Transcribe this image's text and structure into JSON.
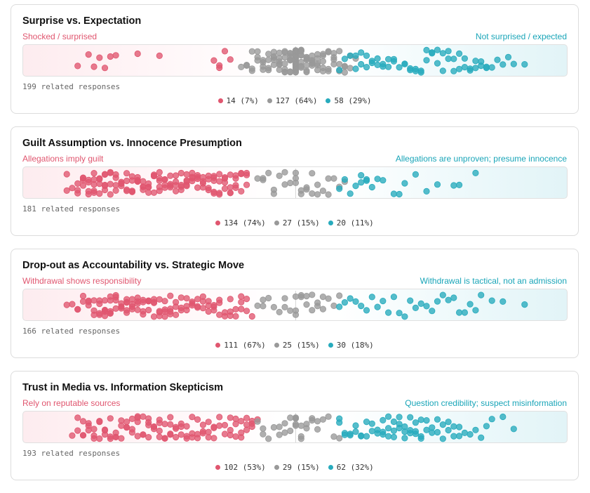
{
  "colors": {
    "shocked": "#e0566f",
    "neutral": "#999999",
    "expected": "#27abbd"
  },
  "cards": [
    {
      "title": "Surprise vs. Expectation",
      "left_label": "Shocked / surprised",
      "right_label": "Not surprised / expected",
      "count_text": "199 related responses",
      "legend": [
        {
          "series": "left",
          "text": "14 (7%)"
        },
        {
          "series": "neutral",
          "text": "127 (64%)"
        },
        {
          "series": "right",
          "text": "58 (29%)"
        }
      ]
    },
    {
      "title": "Guilt Assumption vs. Innocence Presumption",
      "left_label": "Allegations imply guilt",
      "right_label": "Allegations are unproven; presume innocence",
      "count_text": "181 related responses",
      "legend": [
        {
          "series": "left",
          "text": "134 (74%)"
        },
        {
          "series": "neutral",
          "text": "27 (15%)"
        },
        {
          "series": "right",
          "text": "20 (11%)"
        }
      ]
    },
    {
      "title": "Drop-out as Accountability vs. Strategic Move",
      "left_label": "Withdrawal shows responsibility",
      "right_label": "Withdrawal is tactical, not an admission",
      "count_text": "166 related responses",
      "legend": [
        {
          "series": "left",
          "text": "111 (67%)"
        },
        {
          "series": "neutral",
          "text": "25 (15%)"
        },
        {
          "series": "right",
          "text": "30 (18%)"
        }
      ]
    },
    {
      "title": "Trust in Media vs. Information Skepticism",
      "left_label": "Rely on reputable sources",
      "right_label": "Question credibility; suspect misinformation",
      "count_text": "193 related responses",
      "legend": [
        {
          "series": "left",
          "text": "102 (53%)"
        },
        {
          "series": "neutral",
          "text": "29 (15%)"
        },
        {
          "series": "right",
          "text": "62 (32%)"
        }
      ]
    }
  ],
  "chart_data": [
    {
      "type": "scatter",
      "title": "Surprise vs. Expectation",
      "scale": [
        "Shocked / surprised",
        "Not surprised / expected"
      ],
      "series": [
        {
          "name": "Shocked / surprised",
          "count": 14,
          "percent": 7,
          "x": [
            0.1,
            0.12,
            0.13,
            0.14,
            0.15,
            0.16,
            0.17,
            0.21,
            0.25,
            0.35,
            0.36,
            0.36,
            0.37,
            0.38
          ]
        },
        {
          "name": "neutral",
          "count": 127,
          "percent": 64,
          "x": [
            0.4,
            0.41,
            0.41,
            0.42,
            0.42,
            0.42,
            0.43,
            0.43,
            0.43,
            0.44,
            0.44,
            0.44,
            0.44,
            0.45,
            0.45,
            0.45,
            0.45,
            0.46,
            0.46,
            0.46,
            0.46,
            0.46,
            0.47,
            0.47,
            0.47,
            0.47,
            0.47,
            0.47,
            0.48,
            0.48,
            0.48,
            0.48,
            0.48,
            0.48,
            0.48,
            0.49,
            0.49,
            0.49,
            0.49,
            0.49,
            0.49,
            0.49,
            0.49,
            0.5,
            0.5,
            0.5,
            0.5,
            0.5,
            0.5,
            0.5,
            0.5,
            0.5,
            0.5,
            0.5,
            0.5,
            0.5,
            0.5,
            0.5,
            0.5,
            0.5,
            0.5,
            0.5,
            0.5,
            0.5,
            0.5,
            0.5,
            0.5,
            0.5,
            0.5,
            0.5,
            0.5,
            0.5,
            0.5,
            0.5,
            0.5,
            0.5,
            0.5,
            0.5,
            0.5,
            0.51,
            0.51,
            0.51,
            0.51,
            0.51,
            0.51,
            0.51,
            0.51,
            0.51,
            0.52,
            0.52,
            0.52,
            0.52,
            0.52,
            0.52,
            0.52,
            0.53,
            0.53,
            0.53,
            0.53,
            0.53,
            0.53,
            0.54,
            0.54,
            0.54,
            0.54,
            0.54,
            0.55,
            0.55,
            0.55,
            0.55,
            0.55,
            0.56,
            0.56,
            0.56,
            0.56,
            0.57,
            0.57,
            0.57,
            0.57,
            0.58,
            0.58,
            0.58,
            0.59,
            0.59,
            0.59,
            0.6,
            0.6,
            0.61
          ]
        },
        {
          "name": "Not surprised / expected",
          "count": 58,
          "percent": 29,
          "x": [
            0.58,
            0.59,
            0.6,
            0.61,
            0.61,
            0.62,
            0.62,
            0.63,
            0.63,
            0.64,
            0.64,
            0.65,
            0.65,
            0.66,
            0.66,
            0.67,
            0.67,
            0.68,
            0.68,
            0.69,
            0.7,
            0.7,
            0.71,
            0.71,
            0.72,
            0.72,
            0.73,
            0.73,
            0.74,
            0.74,
            0.75,
            0.75,
            0.76,
            0.76,
            0.77,
            0.77,
            0.78,
            0.78,
            0.79,
            0.79,
            0.8,
            0.8,
            0.81,
            0.81,
            0.82,
            0.82,
            0.83,
            0.83,
            0.84,
            0.84,
            0.85,
            0.85,
            0.86,
            0.87,
            0.88,
            0.89,
            0.9,
            0.92
          ]
        }
      ]
    },
    {
      "type": "scatter",
      "title": "Guilt Assumption vs. Innocence Presumption",
      "scale": [
        "Allegations imply guilt",
        "Allegations are unproven; presume innocence"
      ],
      "series": [
        {
          "name": "Allegations imply guilt",
          "count": 134,
          "percent": 74,
          "x": [
            0.08,
            0.08,
            0.09,
            0.1,
            0.1,
            0.1,
            0.11,
            0.11,
            0.11,
            0.11,
            0.12,
            0.12,
            0.12,
            0.12,
            0.13,
            0.13,
            0.13,
            0.13,
            0.13,
            0.14,
            0.14,
            0.14,
            0.14,
            0.15,
            0.15,
            0.15,
            0.15,
            0.15,
            0.16,
            0.16,
            0.16,
            0.16,
            0.17,
            0.17,
            0.17,
            0.17,
            0.18,
            0.18,
            0.18,
            0.18,
            0.19,
            0.19,
            0.19,
            0.19,
            0.2,
            0.2,
            0.2,
            0.2,
            0.2,
            0.21,
            0.21,
            0.21,
            0.21,
            0.22,
            0.22,
            0.22,
            0.22,
            0.23,
            0.23,
            0.23,
            0.23,
            0.24,
            0.24,
            0.24,
            0.24,
            0.25,
            0.25,
            0.25,
            0.25,
            0.25,
            0.26,
            0.26,
            0.26,
            0.26,
            0.27,
            0.27,
            0.27,
            0.27,
            0.28,
            0.28,
            0.28,
            0.28,
            0.29,
            0.29,
            0.29,
            0.29,
            0.3,
            0.3,
            0.3,
            0.3,
            0.3,
            0.31,
            0.31,
            0.31,
            0.31,
            0.32,
            0.32,
            0.32,
            0.32,
            0.33,
            0.33,
            0.33,
            0.33,
            0.34,
            0.34,
            0.34,
            0.34,
            0.35,
            0.35,
            0.35,
            0.35,
            0.35,
            0.36,
            0.36,
            0.36,
            0.36,
            0.37,
            0.37,
            0.37,
            0.37,
            0.38,
            0.38,
            0.38,
            0.38,
            0.39,
            0.39,
            0.39,
            0.39,
            0.4,
            0.4,
            0.4,
            0.41,
            0.41,
            0.41
          ]
        },
        {
          "name": "neutral",
          "count": 27,
          "percent": 15,
          "x": [
            0.43,
            0.44,
            0.44,
            0.45,
            0.46,
            0.46,
            0.47,
            0.48,
            0.48,
            0.49,
            0.5,
            0.5,
            0.5,
            0.51,
            0.51,
            0.52,
            0.52,
            0.53,
            0.53,
            0.54,
            0.54,
            0.55,
            0.56,
            0.56,
            0.57,
            0.58,
            0.59
          ]
        },
        {
          "name": "Allegations are unproven; presume innocence",
          "count": 20,
          "percent": 11,
          "x": [
            0.58,
            0.59,
            0.6,
            0.61,
            0.62,
            0.62,
            0.63,
            0.63,
            0.64,
            0.65,
            0.66,
            0.68,
            0.69,
            0.7,
            0.72,
            0.74,
            0.76,
            0.79,
            0.8,
            0.83
          ]
        }
      ]
    },
    {
      "type": "scatter",
      "title": "Drop-out as Accountability vs. Strategic Move",
      "scale": [
        "Withdrawal shows responsibility",
        "Withdrawal is tactical, not an admission"
      ],
      "series": [
        {
          "name": "Withdrawal shows responsibility",
          "count": 111,
          "percent": 67,
          "x": [
            0.08,
            0.09,
            0.1,
            0.1,
            0.11,
            0.11,
            0.12,
            0.12,
            0.12,
            0.13,
            0.13,
            0.13,
            0.14,
            0.14,
            0.14,
            0.14,
            0.15,
            0.15,
            0.15,
            0.15,
            0.15,
            0.16,
            0.16,
            0.16,
            0.16,
            0.16,
            0.17,
            0.17,
            0.17,
            0.17,
            0.18,
            0.18,
            0.18,
            0.18,
            0.19,
            0.19,
            0.19,
            0.19,
            0.19,
            0.2,
            0.2,
            0.2,
            0.2,
            0.21,
            0.21,
            0.21,
            0.21,
            0.22,
            0.22,
            0.22,
            0.22,
            0.23,
            0.23,
            0.23,
            0.23,
            0.24,
            0.24,
            0.24,
            0.24,
            0.25,
            0.25,
            0.25,
            0.25,
            0.26,
            0.26,
            0.26,
            0.26,
            0.27,
            0.27,
            0.27,
            0.27,
            0.28,
            0.28,
            0.28,
            0.29,
            0.29,
            0.29,
            0.3,
            0.3,
            0.3,
            0.31,
            0.31,
            0.31,
            0.32,
            0.32,
            0.32,
            0.33,
            0.33,
            0.33,
            0.34,
            0.34,
            0.34,
            0.35,
            0.35,
            0.35,
            0.36,
            0.36,
            0.36,
            0.37,
            0.37,
            0.38,
            0.38,
            0.38,
            0.39,
            0.39,
            0.4,
            0.4,
            0.4,
            0.41,
            0.41,
            0.42
          ]
        },
        {
          "name": "neutral",
          "count": 25,
          "percent": 15,
          "x": [
            0.43,
            0.44,
            0.44,
            0.45,
            0.46,
            0.47,
            0.48,
            0.48,
            0.49,
            0.5,
            0.5,
            0.5,
            0.51,
            0.51,
            0.52,
            0.52,
            0.53,
            0.53,
            0.54,
            0.54,
            0.55,
            0.55,
            0.56,
            0.57,
            0.58
          ]
        },
        {
          "name": "Withdrawal is tactical, not an admission",
          "count": 30,
          "percent": 18,
          "x": [
            0.58,
            0.59,
            0.6,
            0.61,
            0.62,
            0.63,
            0.64,
            0.65,
            0.66,
            0.67,
            0.68,
            0.69,
            0.7,
            0.71,
            0.72,
            0.73,
            0.74,
            0.75,
            0.76,
            0.77,
            0.78,
            0.79,
            0.8,
            0.81,
            0.82,
            0.83,
            0.84,
            0.86,
            0.88,
            0.92
          ]
        }
      ]
    },
    {
      "type": "scatter",
      "title": "Trust in Media vs. Information Skepticism",
      "scale": [
        "Rely on reputable sources",
        "Question credibility; suspect misinformation"
      ],
      "series": [
        {
          "name": "Rely on reputable sources",
          "count": 102,
          "percent": 53,
          "x": [
            0.09,
            0.1,
            0.1,
            0.11,
            0.11,
            0.11,
            0.12,
            0.12,
            0.12,
            0.13,
            0.13,
            0.13,
            0.14,
            0.14,
            0.14,
            0.15,
            0.15,
            0.15,
            0.16,
            0.16,
            0.16,
            0.17,
            0.17,
            0.17,
            0.18,
            0.18,
            0.18,
            0.19,
            0.19,
            0.19,
            0.2,
            0.2,
            0.2,
            0.21,
            0.21,
            0.21,
            0.21,
            0.22,
            0.22,
            0.22,
            0.23,
            0.23,
            0.23,
            0.23,
            0.24,
            0.24,
            0.24,
            0.25,
            0.25,
            0.25,
            0.25,
            0.26,
            0.26,
            0.26,
            0.27,
            0.27,
            0.27,
            0.27,
            0.28,
            0.28,
            0.28,
            0.29,
            0.29,
            0.29,
            0.3,
            0.3,
            0.3,
            0.31,
            0.31,
            0.31,
            0.32,
            0.32,
            0.32,
            0.33,
            0.33,
            0.33,
            0.34,
            0.34,
            0.34,
            0.35,
            0.35,
            0.35,
            0.36,
            0.36,
            0.37,
            0.37,
            0.38,
            0.38,
            0.38,
            0.39,
            0.39,
            0.39,
            0.4,
            0.4,
            0.4,
            0.41,
            0.41,
            0.41,
            0.42,
            0.42,
            0.42,
            0.43
          ]
        },
        {
          "name": "neutral",
          "count": 29,
          "percent": 15,
          "x": [
            0.43,
            0.44,
            0.44,
            0.45,
            0.46,
            0.47,
            0.47,
            0.48,
            0.48,
            0.49,
            0.49,
            0.5,
            0.5,
            0.5,
            0.5,
            0.5,
            0.51,
            0.51,
            0.51,
            0.52,
            0.52,
            0.53,
            0.53,
            0.54,
            0.54,
            0.55,
            0.56,
            0.57,
            0.58
          ]
        },
        {
          "name": "Question credibility; suspect misinformation",
          "count": 62,
          "percent": 32,
          "x": [
            0.58,
            0.58,
            0.59,
            0.59,
            0.6,
            0.6,
            0.61,
            0.61,
            0.62,
            0.62,
            0.63,
            0.63,
            0.64,
            0.64,
            0.65,
            0.65,
            0.66,
            0.66,
            0.66,
            0.67,
            0.67,
            0.67,
            0.68,
            0.68,
            0.68,
            0.69,
            0.69,
            0.69,
            0.7,
            0.7,
            0.7,
            0.71,
            0.71,
            0.71,
            0.72,
            0.72,
            0.72,
            0.73,
            0.73,
            0.73,
            0.74,
            0.74,
            0.75,
            0.75,
            0.76,
            0.76,
            0.77,
            0.77,
            0.78,
            0.78,
            0.79,
            0.79,
            0.8,
            0.8,
            0.81,
            0.82,
            0.83,
            0.84,
            0.85,
            0.86,
            0.88,
            0.9
          ]
        }
      ]
    }
  ]
}
